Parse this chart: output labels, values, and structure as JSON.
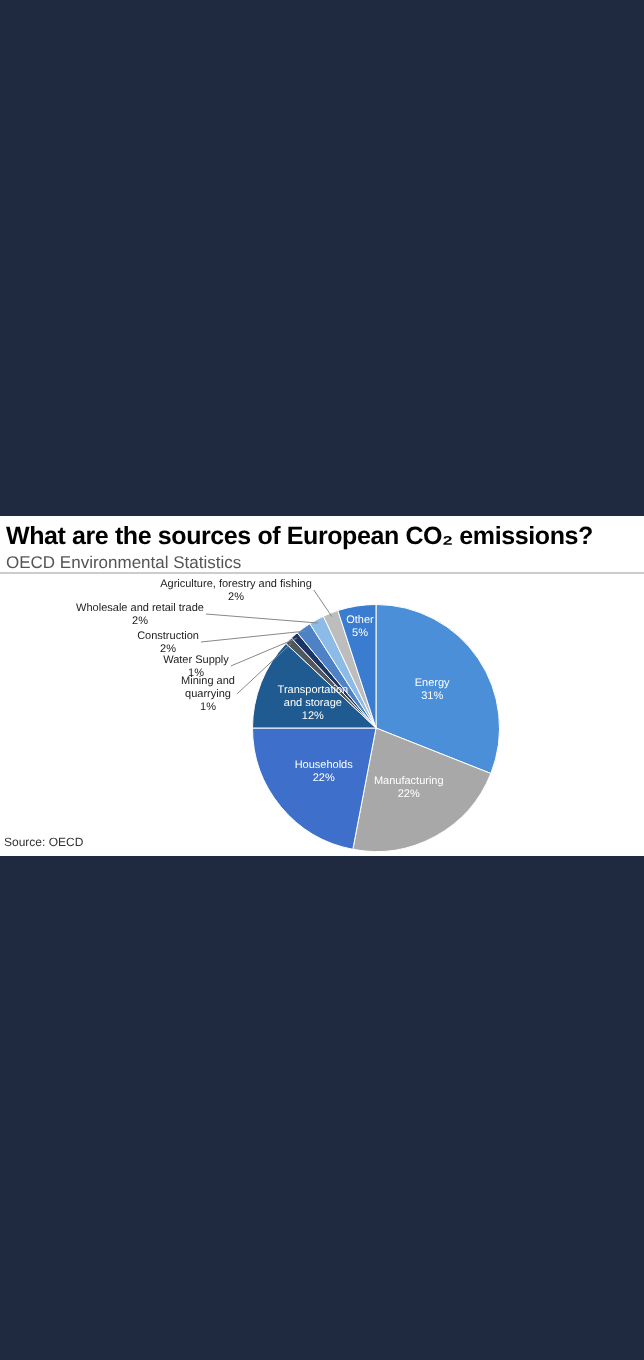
{
  "chart_data": {
    "type": "pie",
    "title": "What are the sources of European CO₂ emissions?",
    "subtitle": "OECD Environmental Statistics",
    "categories": [
      "Energy",
      "Manufacturing",
      "Households",
      "Transportation and storage",
      "Mining and quarrying",
      "Water Supply",
      "Construction",
      "Wholesale and retail trade",
      "Agriculture, forestry and fishing",
      "Other"
    ],
    "values": [
      31,
      22,
      22,
      12,
      1,
      1,
      2,
      2,
      2,
      5
    ],
    "value_labels": [
      "31%",
      "22%",
      "22%",
      "12%",
      "1%",
      "1%",
      "2%",
      "2%",
      "2%",
      "5%"
    ],
    "colors": [
      "#4a8fd8",
      "#a8a8a8",
      "#3d6fcb",
      "#1f5b90",
      "#50565e",
      "#1c3566",
      "#4e82c6",
      "#8dbbe8",
      "#bdbdbd",
      "#3a7ccf"
    ],
    "legend": false,
    "annotations": [
      "Source: OECD"
    ]
  }
}
